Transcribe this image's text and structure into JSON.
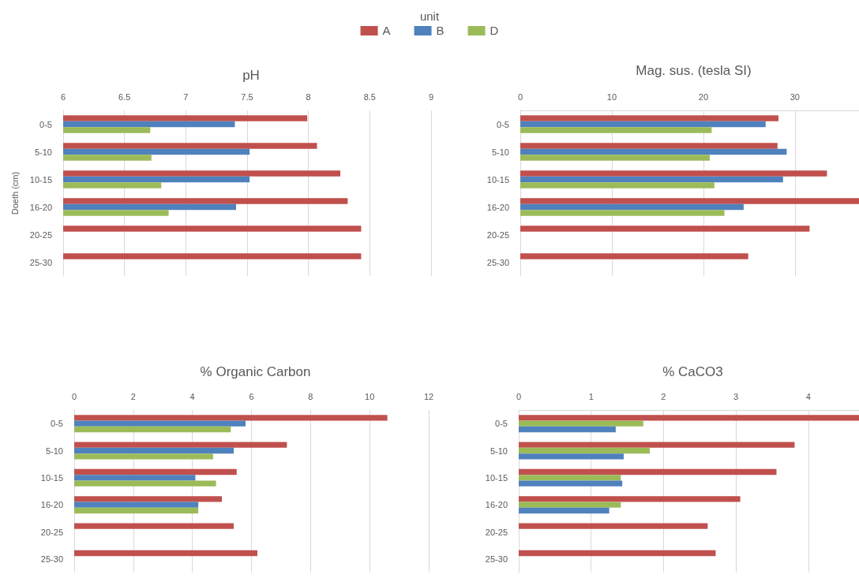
{
  "chart_data": [
    {
      "type": "bar",
      "orientation": "horizontal",
      "title": "pH",
      "ylabel": "Doeth (cm)",
      "legend_title": "unit",
      "legend": "top",
      "grid": "x",
      "categories": [
        "0-5",
        "5-10",
        "10-15",
        "16-20",
        "20-25",
        "25-30"
      ],
      "xlim": [
        6,
        9
      ],
      "xticks": [
        6,
        6.5,
        7,
        7.5,
        8,
        8.5,
        9
      ],
      "series": [
        {
          "name": "A",
          "color": "#c0504d",
          "values": [
            7.99,
            8.07,
            8.26,
            8.32,
            8.43,
            8.43
          ]
        },
        {
          "name": "B",
          "color": "#4f81bd",
          "values": [
            7.4,
            7.52,
            7.52,
            7.41,
            null,
            null
          ]
        },
        {
          "name": "D",
          "color": "#9bbb59",
          "values": [
            6.71,
            6.72,
            6.8,
            6.86,
            null,
            null
          ]
        }
      ]
    },
    {
      "type": "bar",
      "orientation": "horizontal",
      "title": "Mag. sus. (tesla SI)",
      "grid": "x",
      "categories": [
        "0-5",
        "5-10",
        "10-15",
        "16-20",
        "20-25",
        "25-30"
      ],
      "xlim": [
        0,
        37
      ],
      "xticks": [
        0,
        10,
        20,
        30
      ],
      "series": [
        {
          "name": "A",
          "color": "#c0504d",
          "values": [
            28.2,
            28.1,
            33.5,
            37,
            31.6,
            24.9
          ]
        },
        {
          "name": "B",
          "color": "#4f81bd",
          "values": [
            26.8,
            29.1,
            28.7,
            24.4,
            null,
            null
          ]
        },
        {
          "name": "D",
          "color": "#9bbb59",
          "values": [
            20.9,
            20.7,
            21.2,
            22.3,
            null,
            null
          ]
        }
      ]
    },
    {
      "type": "bar",
      "orientation": "horizontal",
      "title": "% Organic Carbon",
      "grid": "x",
      "categories": [
        "0-5",
        "5-10",
        "10-15",
        "16-20",
        "20-25",
        "25-30"
      ],
      "xlim": [
        0,
        12
      ],
      "xticks": [
        0,
        2,
        4,
        6,
        8,
        10,
        12
      ],
      "series": [
        {
          "name": "A",
          "color": "#c0504d",
          "values": [
            10.6,
            7.2,
            5.5,
            5.0,
            5.4,
            6.2
          ]
        },
        {
          "name": "B",
          "color": "#4f81bd",
          "values": [
            5.8,
            5.4,
            4.1,
            4.2,
            null,
            null
          ]
        },
        {
          "name": "D",
          "color": "#9bbb59",
          "values": [
            5.3,
            4.7,
            4.8,
            4.2,
            null,
            null
          ]
        }
      ]
    },
    {
      "type": "bar",
      "orientation": "horizontal",
      "title": "% CaCO3",
      "grid": "x",
      "categories": [
        "0-5",
        "5-10",
        "10-15",
        "16-20",
        "20-25",
        "25-30"
      ],
      "xlim": [
        0,
        4.7
      ],
      "xticks": [
        0,
        1,
        2,
        3,
        4
      ],
      "series": [
        {
          "name": "A",
          "color": "#c0504d",
          "values": [
            4.7,
            3.81,
            3.56,
            3.06,
            2.61,
            2.72
          ]
        },
        {
          "name": "D",
          "color": "#9bbb59",
          "values": [
            1.72,
            1.81,
            1.41,
            1.41,
            null,
            null
          ]
        },
        {
          "name": "B",
          "color": "#4f81bd",
          "values": [
            1.34,
            1.45,
            1.43,
            1.25,
            null,
            null
          ]
        }
      ]
    }
  ]
}
